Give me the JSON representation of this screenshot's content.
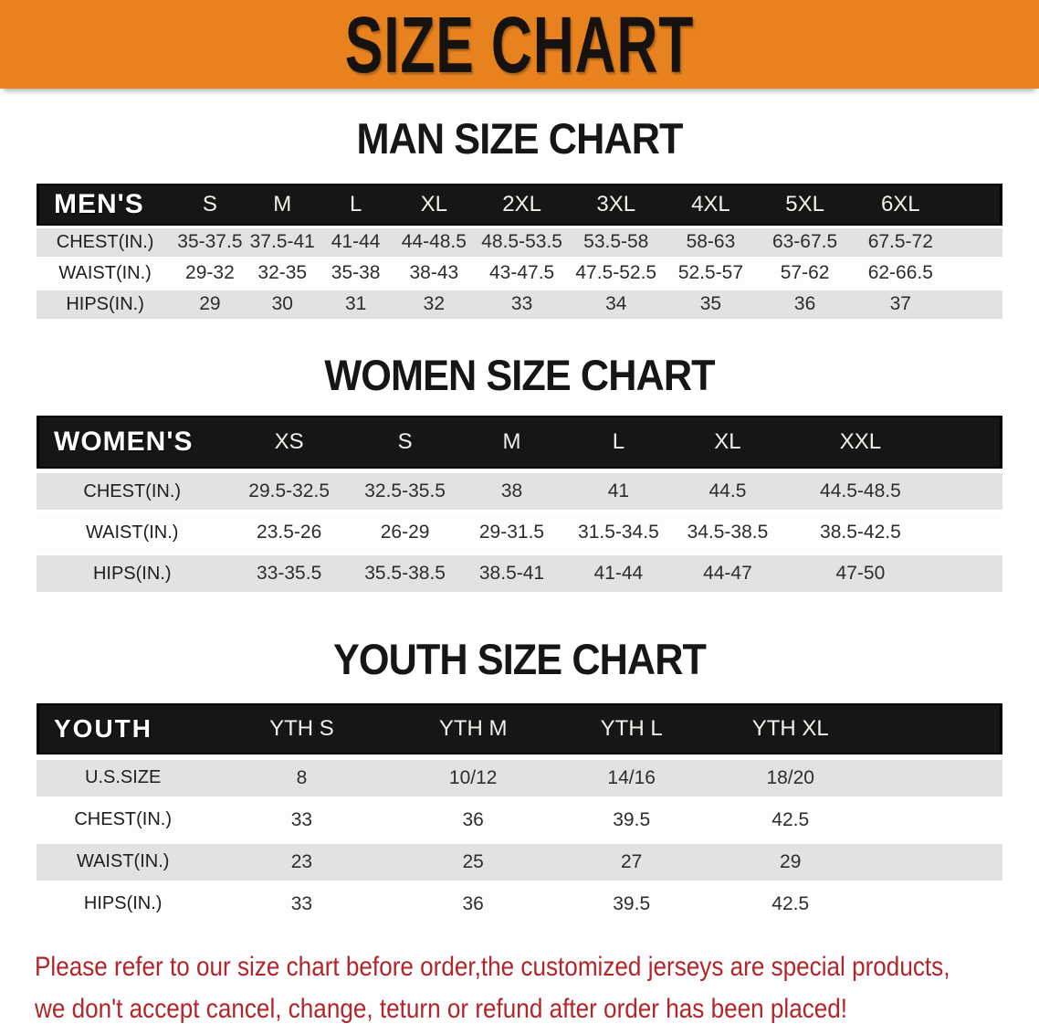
{
  "banner": {
    "title": "SIZE CHART"
  },
  "colors": {
    "banner_bg": "#E8821E",
    "table_header_bg": "#161616",
    "row_shaded": "#E2E2E2",
    "warning_text": "#B2252A"
  },
  "sections": [
    {
      "title": "MAN SIZE CHART",
      "group_label": "MEN'S",
      "columns": [
        "S",
        "M",
        "L",
        "XL",
        "2XL",
        "3XL",
        "4XL",
        "5XL",
        "6XL"
      ],
      "rows": [
        {
          "label": "CHEST(IN.)",
          "values": [
            "35-37.5",
            "37.5-41",
            "41-44",
            "44-48.5",
            "48.5-53.5",
            "53.5-58",
            "58-63",
            "63-67.5",
            "67.5-72"
          ]
        },
        {
          "label": "WAIST(IN.)",
          "values": [
            "29-32",
            "32-35",
            "35-38",
            "38-43",
            "43-47.5",
            "47.5-52.5",
            "52.5-57",
            "57-62",
            "62-66.5"
          ]
        },
        {
          "label": "HIPS(IN.)",
          "values": [
            "29",
            "30",
            "31",
            "32",
            "33",
            "34",
            "35",
            "36",
            "37"
          ]
        }
      ]
    },
    {
      "title": "WOMEN SIZE CHART",
      "group_label": "WOMEN'S",
      "columns": [
        "XS",
        "S",
        "M",
        "L",
        "XL",
        "XXL"
      ],
      "rows": [
        {
          "label": "CHEST(IN.)",
          "values": [
            "29.5-32.5",
            "32.5-35.5",
            "38",
            "41",
            "44.5",
            "44.5-48.5"
          ]
        },
        {
          "label": "WAIST(IN.)",
          "values": [
            "23.5-26",
            "26-29",
            "29-31.5",
            "31.5-34.5",
            "34.5-38.5",
            "38.5-42.5"
          ]
        },
        {
          "label": "HIPS(IN.)",
          "values": [
            "33-35.5",
            "35.5-38.5",
            "38.5-41",
            "41-44",
            "44-47",
            "47-50"
          ]
        }
      ]
    },
    {
      "title": "YOUTH SIZE CHART",
      "group_label": "YOUTH",
      "columns": [
        "YTH S",
        "YTH M",
        "YTH L",
        "YTH XL"
      ],
      "rows": [
        {
          "label": "U.S.SIZE",
          "values": [
            "8",
            "10/12",
            "14/16",
            "18/20"
          ]
        },
        {
          "label": "CHEST(IN.)",
          "values": [
            "33",
            "36",
            "39.5",
            "42.5"
          ]
        },
        {
          "label": "WAIST(IN.)",
          "values": [
            "23",
            "25",
            "27",
            "29"
          ]
        },
        {
          "label": "HIPS(IN.)",
          "values": [
            "33",
            "36",
            "39.5",
            "42.5"
          ]
        }
      ]
    }
  ],
  "footer": {
    "line1": "Please refer to our size chart before order,the customized jerseys are special products,",
    "line2": "we don't accept cancel, change, teturn or refund after order has been placed!"
  }
}
